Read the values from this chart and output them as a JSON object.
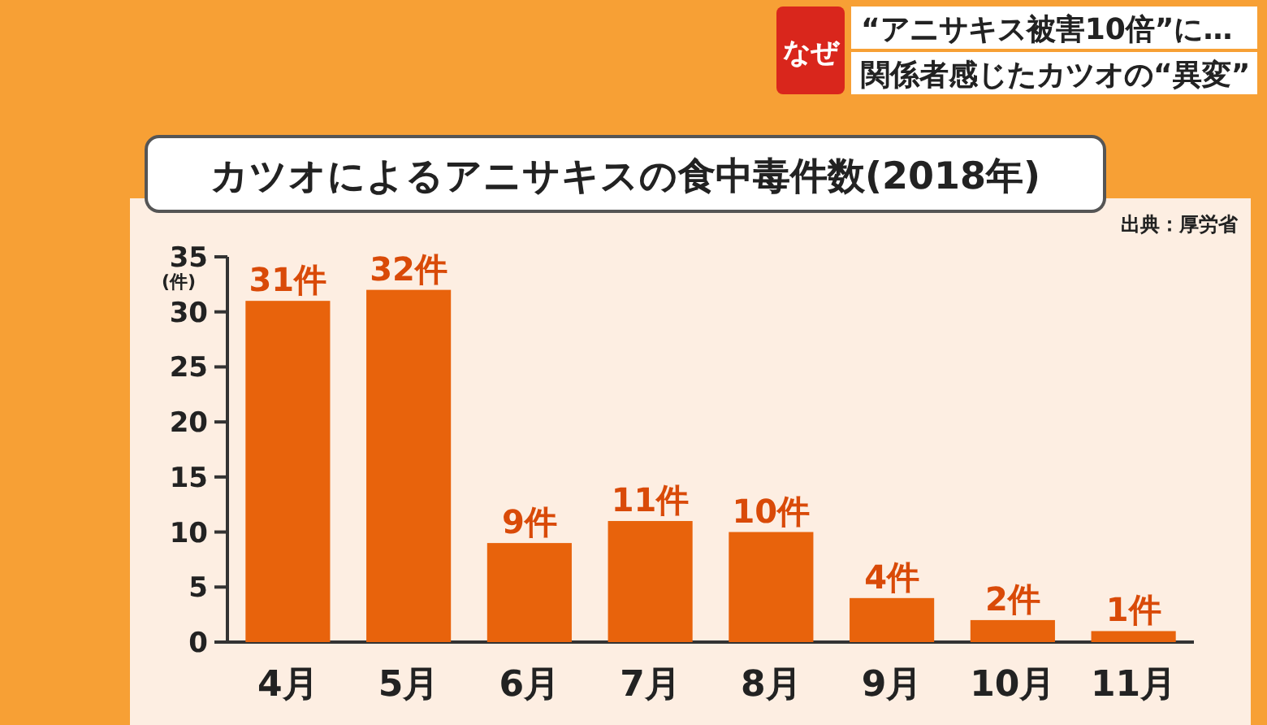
{
  "chart_data": {
    "type": "bar",
    "title": "カツオによるアニサキスの食中毒件数(2018年)",
    "ylabel": "(件)",
    "categories": [
      "4月",
      "5月",
      "6月",
      "7月",
      "8月",
      "9月",
      "10月",
      "11月"
    ],
    "values": [
      31,
      32,
      9,
      11,
      10,
      4,
      2,
      1
    ],
    "value_labels": [
      "31件",
      "32件",
      "9件",
      "11件",
      "10件",
      "4件",
      "2件",
      "1件"
    ],
    "color": "#e8630c",
    "ylim": [
      0,
      35
    ],
    "yticks": [
      0,
      5,
      10,
      15,
      20,
      25,
      30,
      35
    ],
    "grid": false,
    "annotations": [
      "出典：厚労省",
      "なぜ",
      "“アニサキス被害10倍”に…",
      "関係者感じたカツオの“異変”"
    ]
  }
}
